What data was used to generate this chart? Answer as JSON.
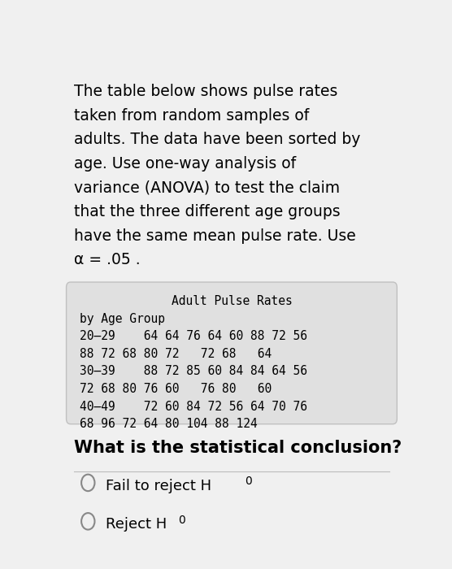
{
  "lines_para": [
    "The table below shows pulse rates",
    "taken from random samples of",
    "adults. The data have been sorted by",
    "age. Use one-way analysis of",
    "variance (ANOVA) to test the claim",
    "that the three different age groups",
    "have the same mean pulse rate. Use",
    "α = .05 ."
  ],
  "table_title": "Adult Pulse Rates",
  "table_subtitle": "by Age Group",
  "table_rows": [
    "20–29    64 64 76 64 60 88 72 56",
    "88 72 68 80 72   72 68   64",
    "30–39    88 72 85 60 84 84 64 56",
    "72 68 80 76 60   76 80   60",
    "40–49    72 60 84 72 56 64 70 76",
    "68 96 72 64 80 104 88 124"
  ],
  "question": "What is the statistical conclusion?",
  "bg_color": "#f0f0f0",
  "table_bg": "#e0e0e0",
  "text_color": "#000000",
  "font_size_para": 13.5,
  "font_size_table": 10.5,
  "font_size_question": 15,
  "font_size_options": 13
}
